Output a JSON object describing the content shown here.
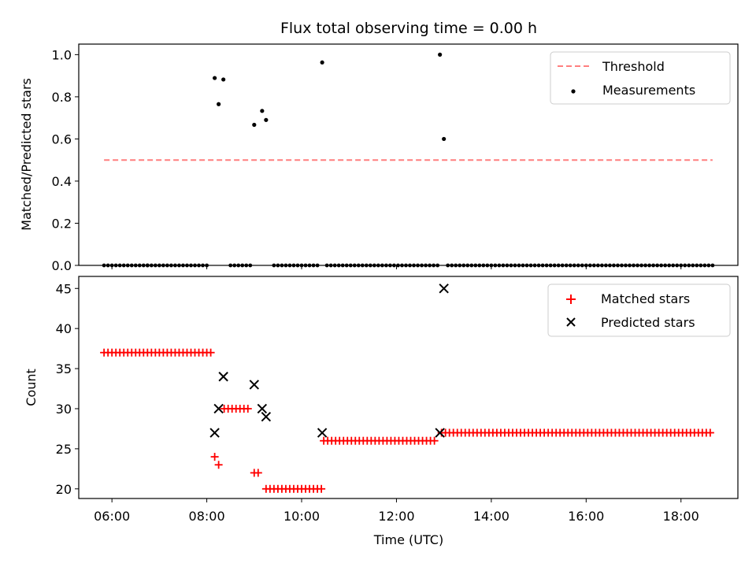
{
  "chart_data": [
    {
      "type": "scatter",
      "title": "Flux total observing time = 0.00 h",
      "xlabel": "",
      "ylabel": "Matched/Predicted stars",
      "xlim": [
        "05:18",
        "19:12"
      ],
      "ylim": [
        0,
        1.05
      ],
      "yticks": [
        "0.0",
        "0.2",
        "0.4",
        "0.6",
        "0.8",
        "1.0"
      ],
      "grid": false,
      "legend_position": "top-right",
      "threshold": {
        "name": "Threshold",
        "value": 0.5,
        "x_start": "05:50",
        "x_end": "18:40",
        "color": "#ff7f7f",
        "style": "dashed"
      },
      "measurements": {
        "name": "Measurements",
        "color": "#000000",
        "points": [
          [
            "08:10",
            0.889
          ],
          [
            "08:15",
            0.765
          ],
          [
            "08:21",
            0.882
          ],
          [
            "09:00",
            0.667
          ],
          [
            "09:10",
            0.733
          ],
          [
            "09:15",
            0.69
          ],
          [
            "10:26",
            0.963
          ],
          [
            "12:55",
            1.0
          ],
          [
            "13:00",
            0.6
          ]
        ],
        "zero_ranges": [
          [
            "05:50",
            "06:45"
          ],
          [
            "06:45",
            "08:02"
          ],
          [
            "08:30",
            "08:58"
          ],
          [
            "09:25",
            "10:20"
          ],
          [
            "10:32",
            "12:52"
          ],
          [
            "13:05",
            "18:40"
          ]
        ]
      }
    },
    {
      "type": "scatter",
      "title": "",
      "xlabel": "Time (UTC)",
      "ylabel": "Count",
      "xlim": [
        "05:18",
        "19:12"
      ],
      "ylim": [
        18.8,
        46.5
      ],
      "yticks": [
        "20",
        "25",
        "30",
        "35",
        "40",
        "45"
      ],
      "xticks": [
        "06:00",
        "08:00",
        "10:00",
        "12:00",
        "14:00",
        "16:00",
        "18:00"
      ],
      "grid": false,
      "legend_position": "top-right",
      "series": [
        {
          "name": "Matched stars",
          "marker": "plus",
          "color": "#ff0000",
          "segments": [
            {
              "from": "05:50",
              "to": "08:05",
              "y": 37
            },
            {
              "from": "08:22",
              "to": "08:55",
              "y": 30
            },
            {
              "from": "09:00",
              "to": "09:08",
              "y": 22
            },
            {
              "from": "09:15",
              "to": "10:25",
              "y": 20
            },
            {
              "from": "10:28",
              "to": "12:50",
              "y": 26
            },
            {
              "from": "12:57",
              "to": "18:40",
              "y": 27
            }
          ],
          "points": [
            [
              "08:10",
              24
            ],
            [
              "08:15",
              23
            ]
          ]
        },
        {
          "name": "Predicted stars",
          "marker": "x",
          "color": "#000000",
          "points": [
            [
              "08:10",
              27
            ],
            [
              "08:15",
              30
            ],
            [
              "08:21",
              34
            ],
            [
              "09:00",
              33
            ],
            [
              "09:10",
              30
            ],
            [
              "09:15",
              29
            ],
            [
              "10:26",
              27
            ],
            [
              "12:55",
              27
            ],
            [
              "13:00",
              45
            ]
          ]
        }
      ]
    }
  ]
}
